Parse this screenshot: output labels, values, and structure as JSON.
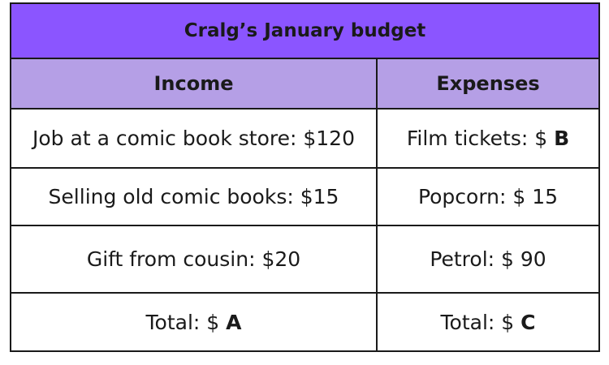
{
  "colors": {
    "title_bg": "#8b55ff",
    "header_bg": "#b59fe6",
    "border": "#1a1a1a",
    "cell_bg": "#ffffff"
  },
  "table": {
    "title": "Cralg’s January budget",
    "headers": {
      "income": "Income",
      "expenses": "Expenses"
    },
    "rows": [
      {
        "income": {
          "text": "Job at a comic book store: $120",
          "var": ""
        },
        "expenses": {
          "text": "Film tickets: $ ",
          "var": "B"
        }
      },
      {
        "income": {
          "text": "Selling old comic books: $15",
          "var": ""
        },
        "expenses": {
          "text": "Popcorn: $ 15",
          "var": ""
        }
      },
      {
        "income": {
          "text": "Gift from cousin: $20",
          "var": ""
        },
        "expenses": {
          "text": "Petrol: $ 90",
          "var": ""
        }
      },
      {
        "income": {
          "text": "Total: $ ",
          "var": "A"
        },
        "expenses": {
          "text": "Total: $ ",
          "var": "C"
        }
      }
    ]
  }
}
